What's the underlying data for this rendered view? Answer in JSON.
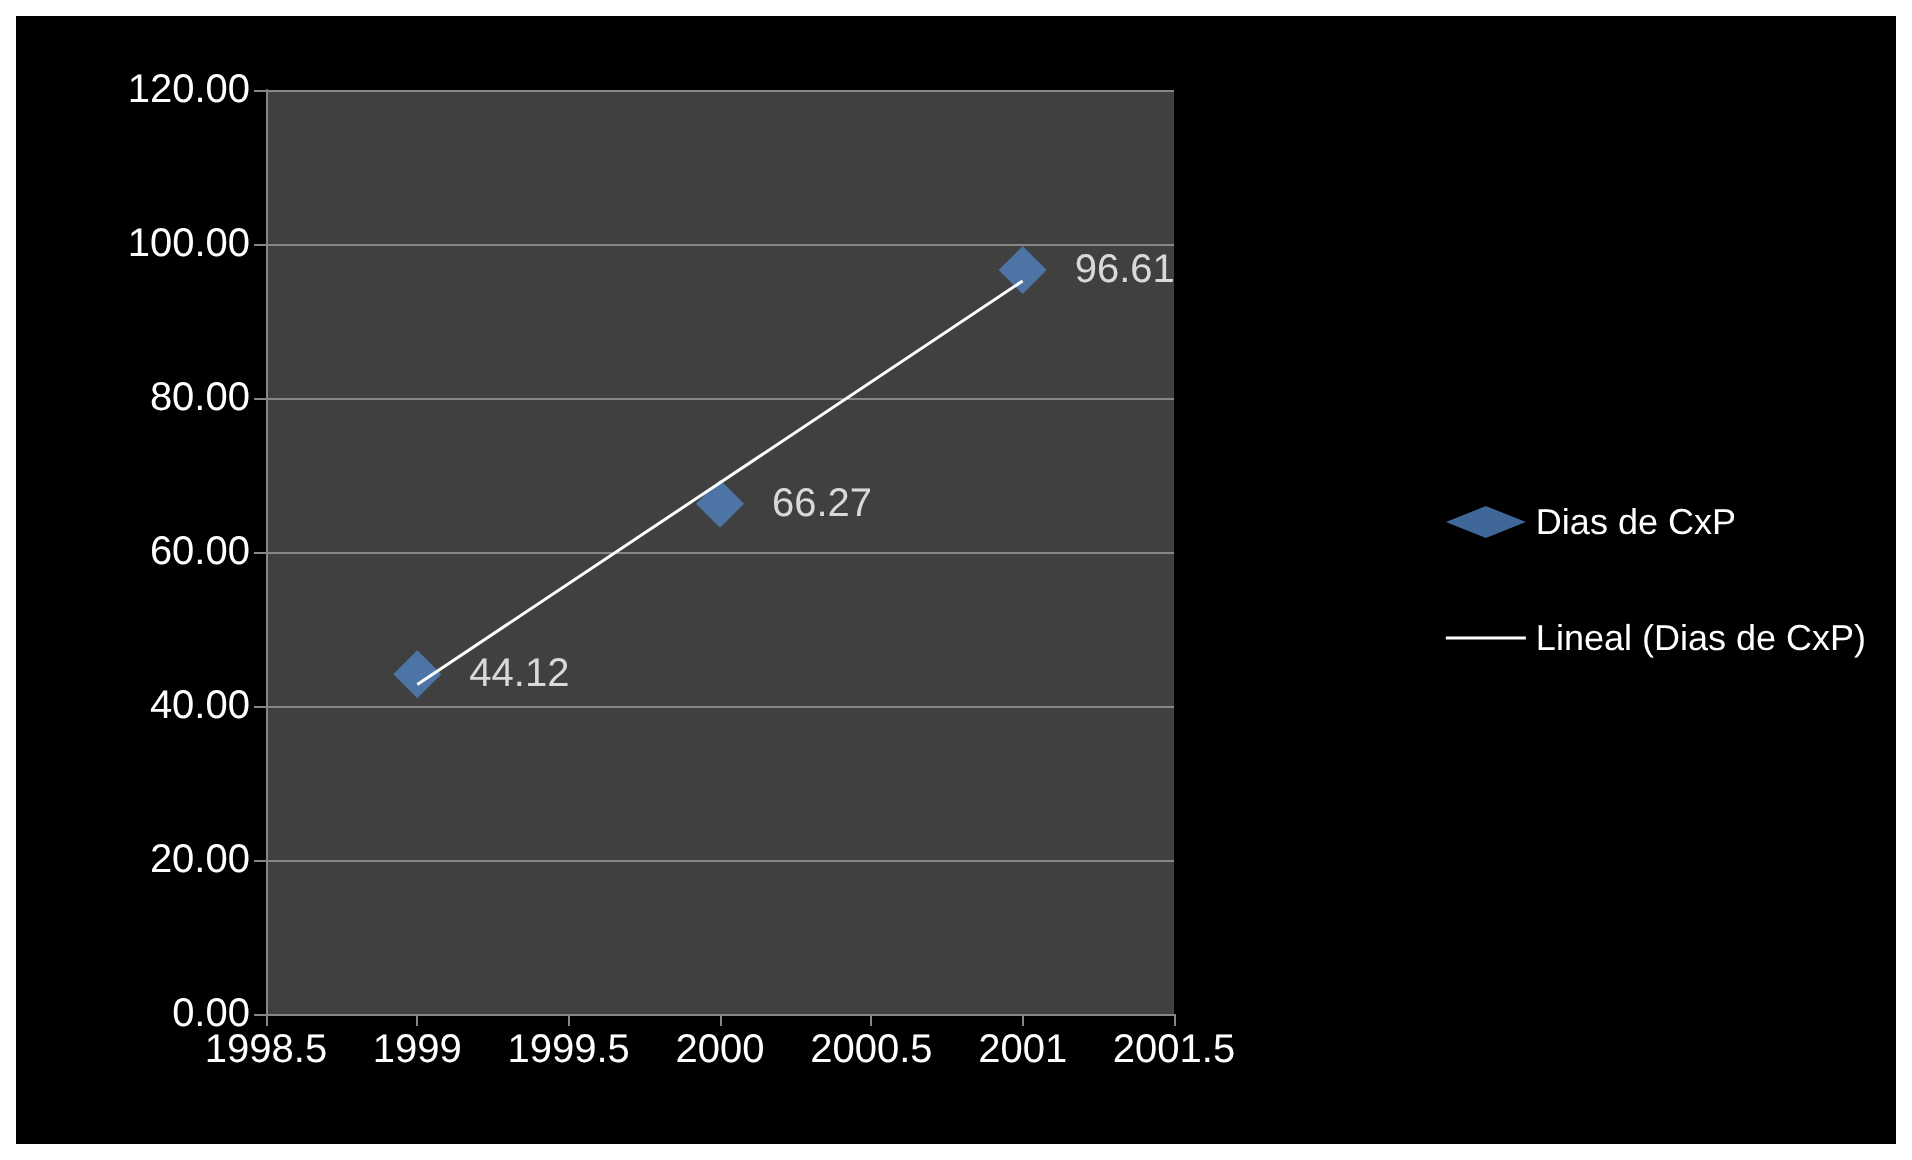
{
  "chart_data": {
    "type": "scatter",
    "x": [
      1999,
      2000,
      2001
    ],
    "series": [
      {
        "name": "Dias de CxP",
        "color": "#4f81bd",
        "marker": "diamond",
        "values": [
          44.12,
          66.27,
          96.61
        ],
        "data_labels": true
      },
      {
        "name": "Lineal (Dias de CxP)",
        "type": "line",
        "color": "#ffffff",
        "marker": "none",
        "x": [
          1999,
          2001
        ],
        "values": [
          42.8,
          95.2
        ]
      }
    ],
    "xlim": [
      1998.5,
      2001.5
    ],
    "xticks": [
      1998.5,
      1999,
      1999.5,
      2000,
      2000.5,
      2001,
      2001.5
    ],
    "ylim": [
      0,
      120
    ],
    "yticks": [
      {
        "value": 0,
        "label": "0.00"
      },
      {
        "value": 20,
        "label": "20.00"
      },
      {
        "value": 40,
        "label": "40.00"
      },
      {
        "value": 60,
        "label": "60.00"
      },
      {
        "value": 80,
        "label": "80.00"
      },
      {
        "value": 100,
        "label": "100.00"
      },
      {
        "value": 120,
        "label": "120.00"
      }
    ],
    "grid": "y",
    "legend": "right"
  }
}
